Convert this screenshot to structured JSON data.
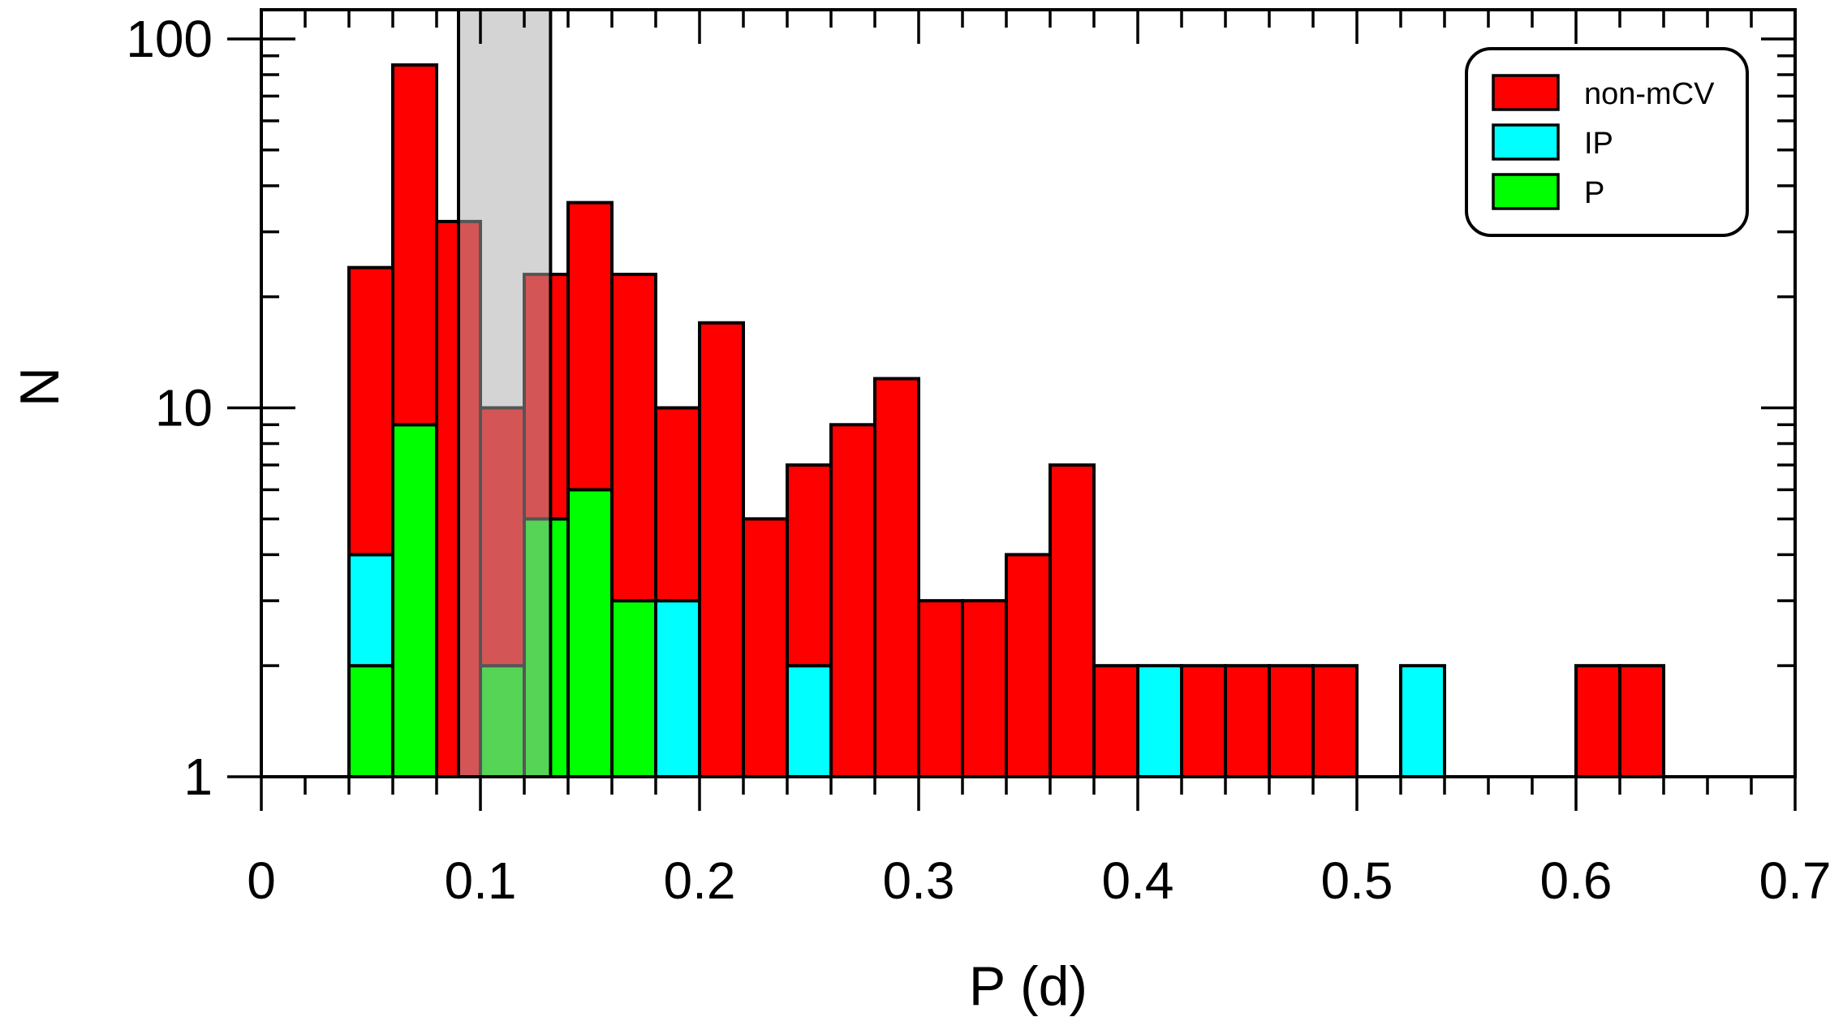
{
  "chart_data": {
    "type": "bar",
    "stacked": true,
    "xlabel": "P (d)",
    "ylabel": "N",
    "y_scale": "log",
    "xlim": [
      0,
      0.7
    ],
    "ylim": [
      1,
      120
    ],
    "x_ticks": [
      "0",
      "0.1",
      "0.2",
      "0.3",
      "0.4",
      "0.5",
      "0.6",
      "0.7"
    ],
    "y_ticks": [
      "1",
      "10",
      "100"
    ],
    "bin_width": 0.02,
    "period_gap_shading": [
      0.09,
      0.132
    ],
    "legend": {
      "position": "top-right",
      "entries": [
        "non-mCV",
        "IP",
        "P"
      ]
    },
    "series": [
      {
        "name": "P",
        "color": "#00ff00",
        "x": [
          0.05,
          0.07,
          0.11,
          0.13,
          0.15,
          0.17
        ],
        "values": [
          2,
          9,
          2,
          5,
          6,
          3
        ]
      },
      {
        "name": "IP",
        "color": "#00ffff",
        "x": [
          0.05,
          0.19,
          0.23,
          0.25,
          0.41,
          0.53
        ],
        "values": [
          2,
          3,
          1,
          2,
          2,
          2
        ]
      },
      {
        "name": "non-mCV",
        "color": "#ff0000",
        "x": [
          0.05,
          0.07,
          0.09,
          0.11,
          0.13,
          0.15,
          0.17,
          0.19,
          0.21,
          0.23,
          0.25,
          0.27,
          0.29,
          0.31,
          0.33,
          0.35,
          0.37,
          0.39,
          0.43,
          0.45,
          0.47,
          0.49,
          0.61,
          0.63
        ],
        "values": [
          20,
          76,
          32,
          8,
          18,
          30,
          20,
          7,
          17,
          4,
          5,
          9,
          12,
          3,
          3,
          4,
          7,
          2,
          2,
          2,
          2,
          2,
          2,
          2
        ]
      }
    ]
  }
}
